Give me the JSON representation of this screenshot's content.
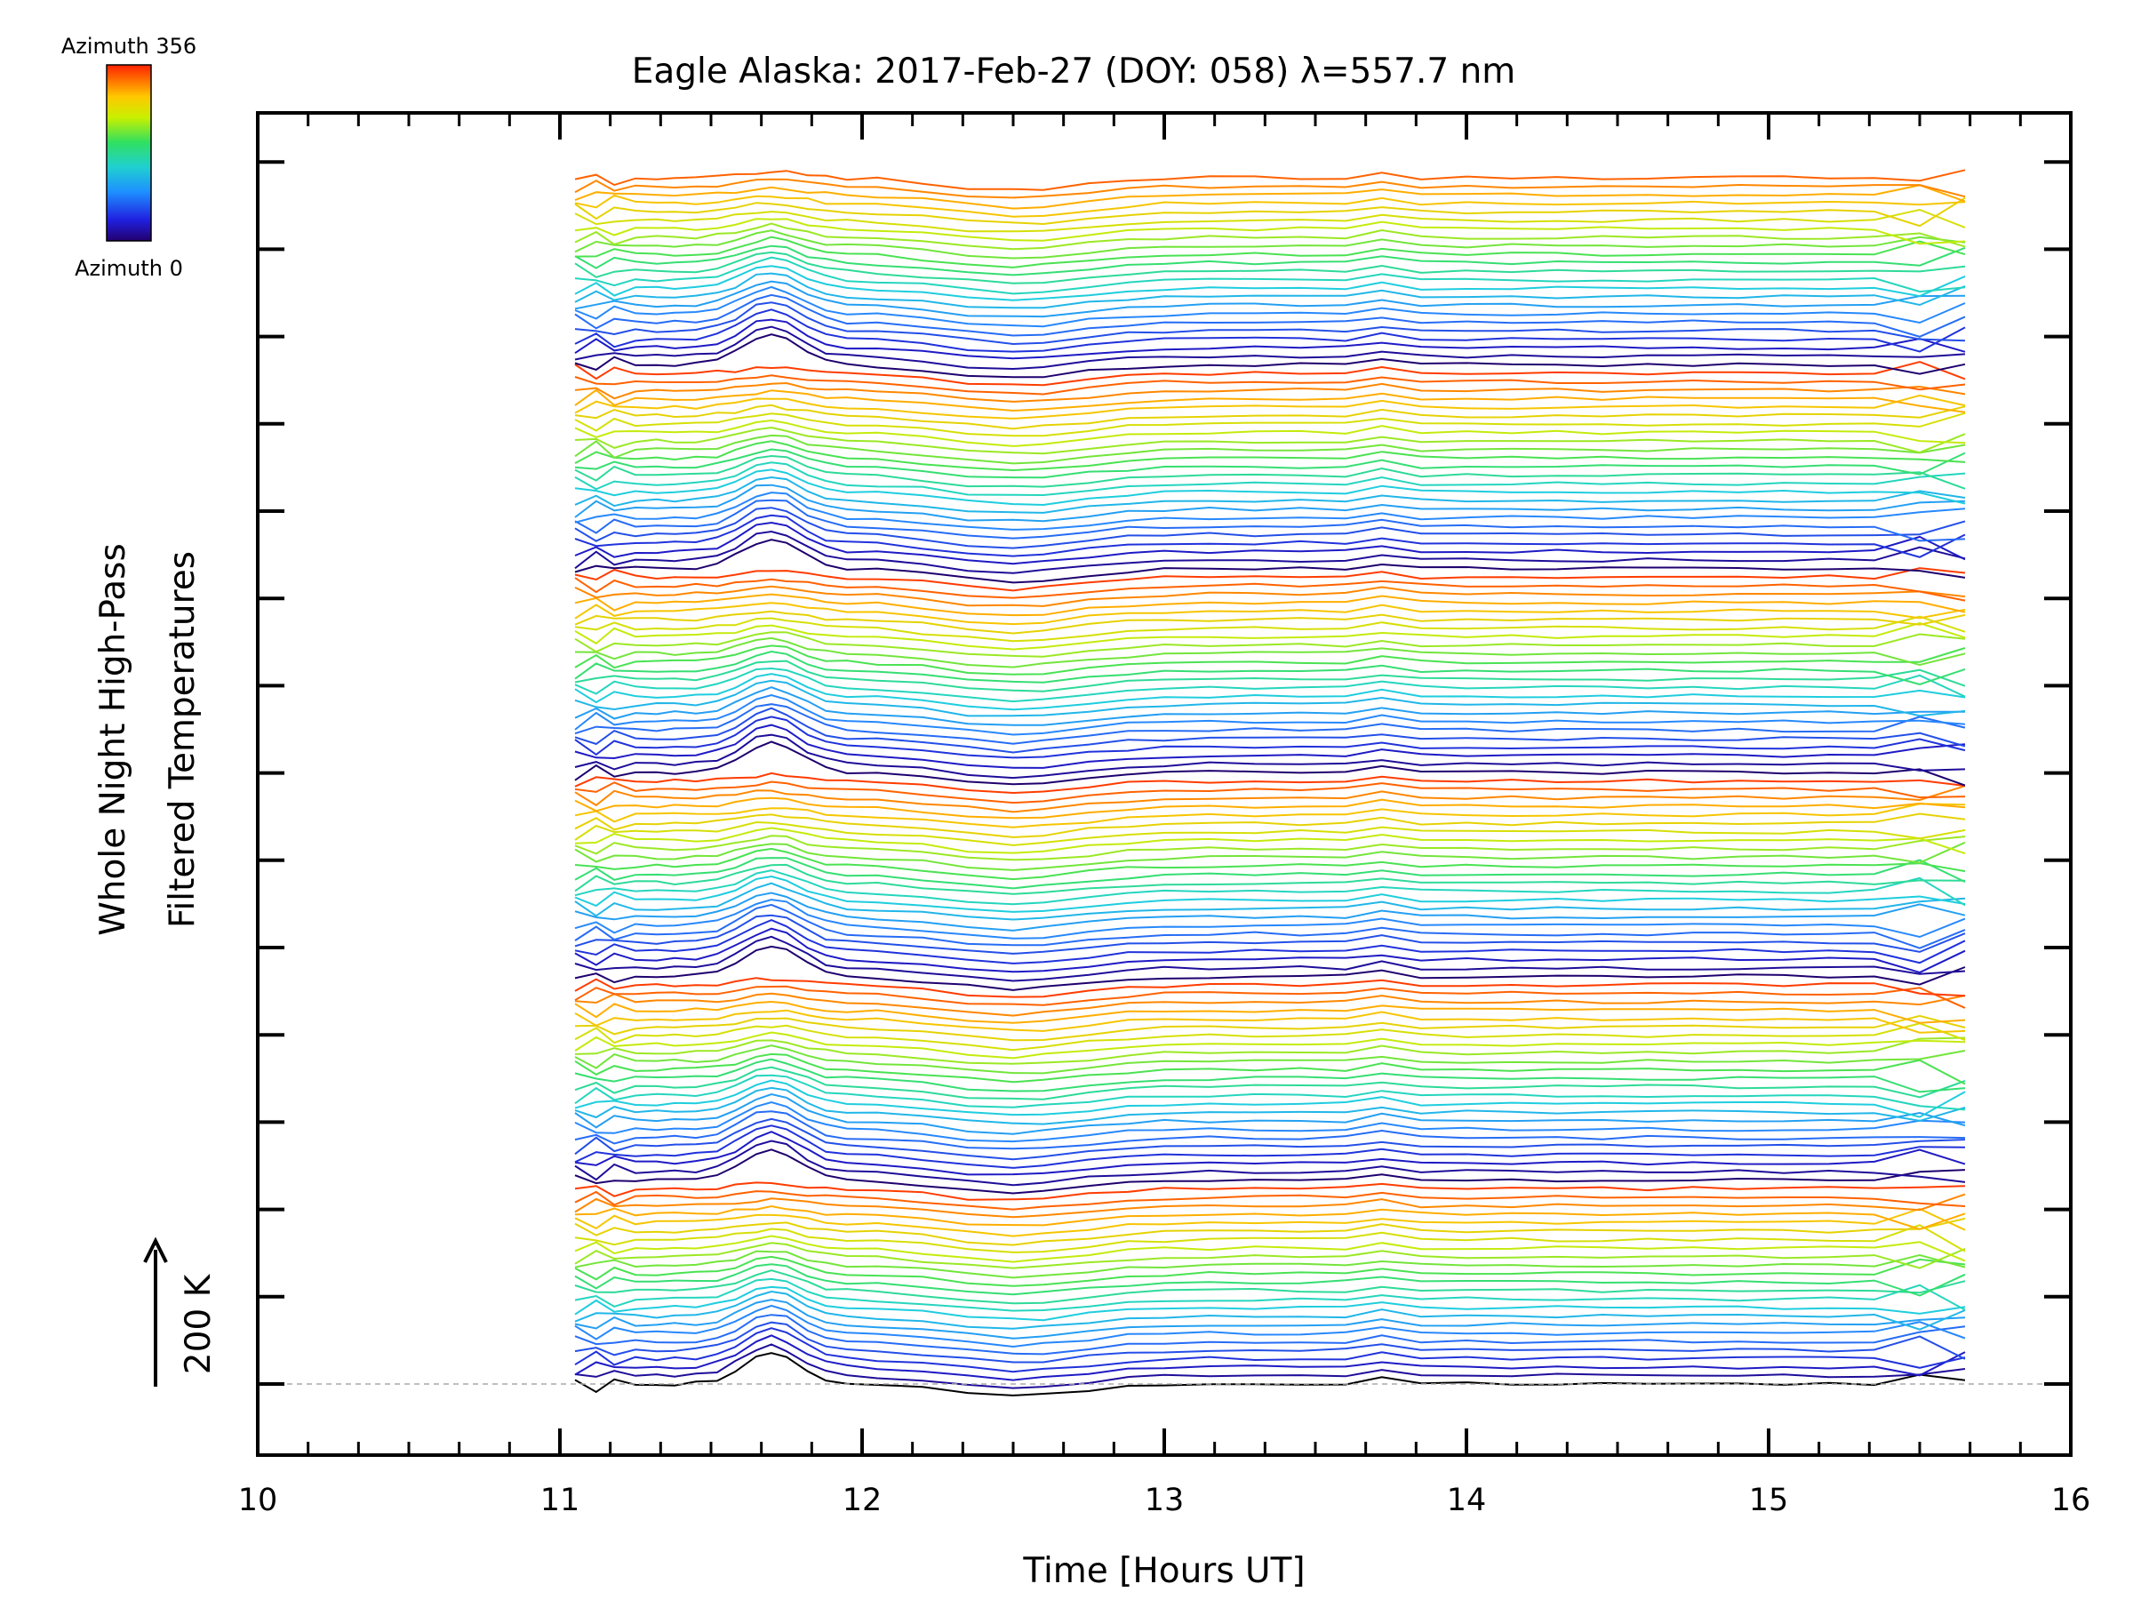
{
  "chart_data": {
    "type": "line",
    "title": "Eagle Alaska: 2017-Feb-27 (DOY: 058) λ=557.7 nm",
    "xlabel": "Time [Hours UT]",
    "ylabel_line1": "Whole Night High-Pass",
    "ylabel_line2": "Filtered Temperatures",
    "xlim": [
      10,
      16
    ],
    "x_ticks": [
      "10",
      "11",
      "12",
      "13",
      "14",
      "15",
      "16"
    ],
    "x_minor_step": 0.166667,
    "y_major_ticks": 15,
    "scale_bar_label": "200 K",
    "colorbar": {
      "top_label": "Azimuth 356",
      "bottom_label": "Azimuth 0",
      "colormap": "rainbow"
    },
    "x": [
      11.05,
      11.12,
      11.18,
      11.25,
      11.32,
      11.38,
      11.45,
      11.52,
      11.58,
      11.65,
      11.7,
      11.75,
      11.82,
      11.88,
      11.95,
      12.05,
      12.2,
      12.35,
      12.5,
      12.6,
      12.75,
      12.88,
      13.0,
      13.15,
      13.3,
      13.45,
      13.6,
      13.72,
      13.85,
      14.0,
      14.15,
      14.3,
      14.45,
      14.6,
      14.75,
      14.9,
      15.05,
      15.2,
      15.35,
      15.5,
      15.65
    ],
    "n_series": 143,
    "series_color_order": "azimuth 0 (dark purple) to azimuth 356 (red), repeating",
    "baseline_style": "dashed gray at lowest trace level",
    "azimuth_range": [
      0,
      356
    ]
  }
}
